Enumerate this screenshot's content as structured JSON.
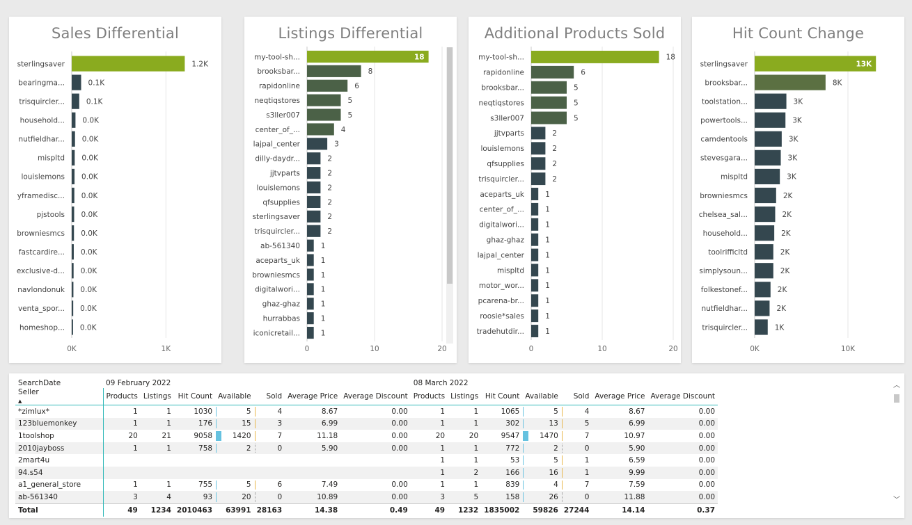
{
  "colors": {
    "highlight": "#8aab1f",
    "dark": "#34474f",
    "mid": "#5b7042",
    "mid2": "#4b6147"
  },
  "charts": [
    {
      "id": "sales",
      "title": "Sales Differential",
      "ticks": [
        {
          "v": 0,
          "l": "0K"
        },
        {
          "v": 1000,
          "l": "1K"
        }
      ],
      "max": 1500,
      "scrollbar": false,
      "rows": [
        {
          "label": "sterlingsaver",
          "value": 1200,
          "text": "1.2K",
          "color": "highlight"
        },
        {
          "label": "bearingma...",
          "value": 100,
          "text": "0.1K",
          "color": "dark"
        },
        {
          "label": "trisquircler...",
          "value": 80,
          "text": "0.1K",
          "color": "dark"
        },
        {
          "label": "household...",
          "value": 40,
          "text": "0.0K",
          "color": "dark"
        },
        {
          "label": "nutfieldhar...",
          "value": 35,
          "text": "0.0K",
          "color": "dark"
        },
        {
          "label": "mispltd",
          "value": 32,
          "text": "0.0K",
          "color": "dark"
        },
        {
          "label": "louislemons",
          "value": 30,
          "text": "0.0K",
          "color": "dark"
        },
        {
          "label": "yframedisc...",
          "value": 28,
          "text": "0.0K",
          "color": "dark"
        },
        {
          "label": "pjstools",
          "value": 26,
          "text": "0.0K",
          "color": "dark"
        },
        {
          "label": "browniesmcs",
          "value": 24,
          "text": "0.0K",
          "color": "dark"
        },
        {
          "label": "fastcardire...",
          "value": 22,
          "text": "0.0K",
          "color": "dark"
        },
        {
          "label": "exclusive-d...",
          "value": 20,
          "text": "0.0K",
          "color": "dark"
        },
        {
          "label": "navlondonuk",
          "value": 18,
          "text": "0.0K",
          "color": "dark"
        },
        {
          "label": "venta_spor...",
          "value": 16,
          "text": "0.0K",
          "color": "dark"
        },
        {
          "label": "homeshop...",
          "value": 14,
          "text": "0.0K",
          "color": "dark"
        }
      ]
    },
    {
      "id": "listings",
      "title": "Listings Differential",
      "ticks": [
        {
          "v": 0,
          "l": "0"
        },
        {
          "v": 10,
          "l": "10"
        },
        {
          "v": 20,
          "l": "20"
        }
      ],
      "max": 20,
      "scrollbar": true,
      "rows": [
        {
          "label": "my-tool-sh...",
          "value": 18,
          "text": "18",
          "color": "highlight",
          "inside": true
        },
        {
          "label": "brooksbar...",
          "value": 8,
          "text": "8",
          "color": "mid2"
        },
        {
          "label": "rapidonline",
          "value": 6,
          "text": "6",
          "color": "mid2"
        },
        {
          "label": "neqtiqstores",
          "value": 5,
          "text": "5",
          "color": "mid2"
        },
        {
          "label": "s3ller007",
          "value": 5,
          "text": "5",
          "color": "mid2"
        },
        {
          "label": "center_of_...",
          "value": 4,
          "text": "4",
          "color": "mid2"
        },
        {
          "label": "lajpal_center",
          "value": 3,
          "text": "3",
          "color": "dark"
        },
        {
          "label": "dilly-daydr...",
          "value": 2,
          "text": "2",
          "color": "dark"
        },
        {
          "label": "jjtvparts",
          "value": 2,
          "text": "2",
          "color": "dark"
        },
        {
          "label": "louislemons",
          "value": 2,
          "text": "2",
          "color": "dark"
        },
        {
          "label": "qfsupplies",
          "value": 2,
          "text": "2",
          "color": "dark"
        },
        {
          "label": "sterlingsaver",
          "value": 2,
          "text": "2",
          "color": "dark"
        },
        {
          "label": "trisquircler...",
          "value": 2,
          "text": "2",
          "color": "dark"
        },
        {
          "label": "ab-561340",
          "value": 1,
          "text": "1",
          "color": "dark"
        },
        {
          "label": "aceparts_uk",
          "value": 1,
          "text": "1",
          "color": "dark"
        },
        {
          "label": "browniesmcs",
          "value": 1,
          "text": "1",
          "color": "dark"
        },
        {
          "label": "digitalwori...",
          "value": 1,
          "text": "1",
          "color": "dark"
        },
        {
          "label": "ghaz-ghaz",
          "value": 1,
          "text": "1",
          "color": "dark"
        },
        {
          "label": "hurrabbas",
          "value": 1,
          "text": "1",
          "color": "dark"
        },
        {
          "label": "iconicretail...",
          "value": 1,
          "text": "1",
          "color": "dark"
        }
      ]
    },
    {
      "id": "products",
      "title": "Additional Products Sold",
      "ticks": [
        {
          "v": 0,
          "l": "0"
        },
        {
          "v": 10,
          "l": "10"
        },
        {
          "v": 20,
          "l": "20"
        }
      ],
      "max": 20,
      "scrollbar": false,
      "rows": [
        {
          "label": "my-tool-sh...",
          "value": 18,
          "text": "18",
          "color": "highlight"
        },
        {
          "label": "rapidonline",
          "value": 6,
          "text": "6",
          "color": "mid2"
        },
        {
          "label": "brooksbar...",
          "value": 5,
          "text": "5",
          "color": "mid2"
        },
        {
          "label": "neqtiqstores",
          "value": 5,
          "text": "5",
          "color": "mid2"
        },
        {
          "label": "s3ller007",
          "value": 5,
          "text": "5",
          "color": "mid2"
        },
        {
          "label": "jjtvparts",
          "value": 2,
          "text": "2",
          "color": "dark"
        },
        {
          "label": "louislemons",
          "value": 2,
          "text": "2",
          "color": "dark"
        },
        {
          "label": "qfsupplies",
          "value": 2,
          "text": "2",
          "color": "dark"
        },
        {
          "label": "trisquircler...",
          "value": 2,
          "text": "2",
          "color": "dark"
        },
        {
          "label": "aceparts_uk",
          "value": 1,
          "text": "1",
          "color": "dark"
        },
        {
          "label": "center_of_...",
          "value": 1,
          "text": "1",
          "color": "dark"
        },
        {
          "label": "digitalwori...",
          "value": 1,
          "text": "1",
          "color": "dark"
        },
        {
          "label": "ghaz-ghaz",
          "value": 1,
          "text": "1",
          "color": "dark"
        },
        {
          "label": "lajpal_center",
          "value": 1,
          "text": "1",
          "color": "dark"
        },
        {
          "label": "mispltd",
          "value": 1,
          "text": "1",
          "color": "dark"
        },
        {
          "label": "motor_wor...",
          "value": 1,
          "text": "1",
          "color": "dark"
        },
        {
          "label": "pcarena-br...",
          "value": 1,
          "text": "1",
          "color": "dark"
        },
        {
          "label": "roosie*sales",
          "value": 1,
          "text": "1",
          "color": "dark"
        },
        {
          "label": "tradehutdir...",
          "value": 1,
          "text": "1",
          "color": "dark"
        }
      ]
    },
    {
      "id": "hits",
      "title": "Hit Count Change",
      "ticks": [
        {
          "v": 0,
          "l": "0K"
        },
        {
          "v": 10000,
          "l": "10K"
        }
      ],
      "max": 15000,
      "scrollbar": false,
      "rows": [
        {
          "label": "sterlingsaver",
          "value": 13000,
          "text": "13K",
          "color": "highlight",
          "inside": true
        },
        {
          "label": "brooksbar...",
          "value": 7600,
          "text": "8K",
          "color": "mid"
        },
        {
          "label": "toolstation...",
          "value": 3400,
          "text": "3K",
          "color": "dark"
        },
        {
          "label": "powertools...",
          "value": 3300,
          "text": "3K",
          "color": "dark"
        },
        {
          "label": "camdentools",
          "value": 2900,
          "text": "3K",
          "color": "dark"
        },
        {
          "label": "stevesgara...",
          "value": 2800,
          "text": "3K",
          "color": "dark"
        },
        {
          "label": "mispltd",
          "value": 2700,
          "text": "3K",
          "color": "dark"
        },
        {
          "label": "browniesmcs",
          "value": 2300,
          "text": "2K",
          "color": "dark"
        },
        {
          "label": "chelsea_sal...",
          "value": 2200,
          "text": "2K",
          "color": "dark"
        },
        {
          "label": "household...",
          "value": 2100,
          "text": "2K",
          "color": "dark"
        },
        {
          "label": "toolrifficltd",
          "value": 2000,
          "text": "2K",
          "color": "dark"
        },
        {
          "label": "simplysoun...",
          "value": 2000,
          "text": "2K",
          "color": "dark"
        },
        {
          "label": "folkestonef...",
          "value": 1700,
          "text": "2K",
          "color": "dark"
        },
        {
          "label": "nutfieldhar...",
          "value": 1600,
          "text": "2K",
          "color": "dark"
        },
        {
          "label": "trisquircler...",
          "value": 1400,
          "text": "1K",
          "color": "dark"
        }
      ]
    }
  ],
  "table": {
    "corner_top": "SearchDate",
    "corner_bottom": "Seller",
    "date1": "09 February 2022",
    "date2": "08 March 2022",
    "columns": [
      "Products",
      "Listings",
      "Hit Count",
      "Available",
      "Sold",
      "Average Price",
      "Average Discount"
    ],
    "rows": [
      {
        "seller": "*zimlux*",
        "a": [
          "1",
          "1",
          "1030",
          "5",
          "4",
          "8.67",
          "0.00"
        ],
        "b": [
          "1",
          "1",
          "1065",
          "5",
          "4",
          "8.67",
          "0.00"
        ]
      },
      {
        "seller": "123bluemonkey",
        "a": [
          "1",
          "1",
          "176",
          "15",
          "3",
          "6.99",
          "0.00"
        ],
        "b": [
          "1",
          "1",
          "302",
          "13",
          "5",
          "6.99",
          "0.00"
        ]
      },
      {
        "seller": "1toolshop",
        "a": [
          "20",
          "21",
          "9058",
          "1420",
          "7",
          "11.18",
          "0.00"
        ],
        "b": [
          "20",
          "20",
          "9547",
          "1470",
          "7",
          "10.97",
          "0.00"
        ]
      },
      {
        "seller": "2010jayboss",
        "a": [
          "1",
          "1",
          "758",
          "2",
          "0",
          "5.90",
          "0.00"
        ],
        "b": [
          "1",
          "1",
          "772",
          "2",
          "0",
          "5.90",
          "0.00"
        ]
      },
      {
        "seller": "2mart4u",
        "a": [
          "",
          "",
          "",
          "",
          "",
          "",
          ""
        ],
        "b": [
          "1",
          "1",
          "53",
          "5",
          "1",
          "6.59",
          "0.00"
        ]
      },
      {
        "seller": "94.s54",
        "a": [
          "",
          "",
          "",
          "",
          "",
          "",
          ""
        ],
        "b": [
          "1",
          "2",
          "166",
          "16",
          "1",
          "9.99",
          "0.00"
        ]
      },
      {
        "seller": "a1_general_store",
        "a": [
          "1",
          "1",
          "755",
          "5",
          "6",
          "7.49",
          "0.00"
        ],
        "b": [
          "1",
          "1",
          "839",
          "4",
          "7",
          "7.59",
          "0.00"
        ]
      },
      {
        "seller": "ab-561340",
        "a": [
          "3",
          "4",
          "93",
          "20",
          "0",
          "10.89",
          "0.00"
        ],
        "b": [
          "3",
          "5",
          "158",
          "26",
          "0",
          "11.88",
          "0.00"
        ]
      }
    ],
    "total": {
      "label": "Total",
      "a": [
        "49",
        "1234",
        "2010463",
        "63991",
        "28163",
        "14.38",
        "0.49"
      ],
      "b": [
        "49",
        "1232",
        "1835002",
        "59826",
        "27244",
        "14.14",
        "0.37"
      ]
    }
  }
}
